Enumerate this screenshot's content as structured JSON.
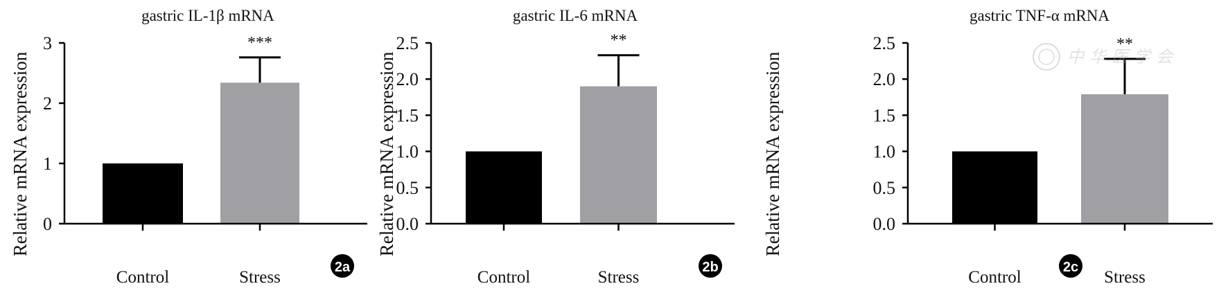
{
  "chart_data": [
    {
      "type": "bar",
      "title": "gastric IL-1β mRNA",
      "panel_label": "2a",
      "ylabel": "Relative mRNA expression",
      "categories": [
        "Control",
        "Stress"
      ],
      "values": [
        1.0,
        2.34
      ],
      "error_upper": [
        null,
        2.76
      ],
      "significance": [
        null,
        "***"
      ],
      "ylim": [
        0,
        3
      ],
      "yticks": [
        0,
        1,
        2,
        3
      ],
      "ytick_labels": [
        "0",
        "1",
        "2",
        "3"
      ],
      "colors": [
        "#000000",
        "#a0a0a4"
      ]
    },
    {
      "type": "bar",
      "title": "gastric IL-6 mRNA",
      "panel_label": "2b",
      "ylabel": "Relative mRNA expression",
      "categories": [
        "Control",
        "Stress"
      ],
      "values": [
        1.0,
        1.9
      ],
      "error_upper": [
        null,
        2.33
      ],
      "significance": [
        null,
        "**"
      ],
      "ylim": [
        0,
        2.5
      ],
      "yticks": [
        0,
        0.5,
        1,
        1.5,
        2,
        2.5
      ],
      "ytick_labels": [
        "0.0",
        "0.5",
        "1.0",
        "1.5",
        "2.0",
        "2.5"
      ],
      "colors": [
        "#000000",
        "#a0a0a4"
      ]
    },
    {
      "type": "bar",
      "title": "gastric TNF-α mRNA",
      "panel_label": "2c",
      "ylabel": "Relative mRNA expression",
      "categories": [
        "Control",
        "Stress"
      ],
      "values": [
        1.0,
        1.79
      ],
      "error_upper": [
        null,
        2.28
      ],
      "significance": [
        null,
        "**"
      ],
      "ylim": [
        0,
        2.5
      ],
      "yticks": [
        0,
        0.5,
        1,
        1.5,
        2,
        2.5
      ],
      "ytick_labels": [
        "0.0",
        "0.5",
        "1.0",
        "1.5",
        "2.0",
        "2.5"
      ],
      "colors": [
        "#000000",
        "#a0a0a4"
      ]
    }
  ],
  "watermark": "中华医学会"
}
